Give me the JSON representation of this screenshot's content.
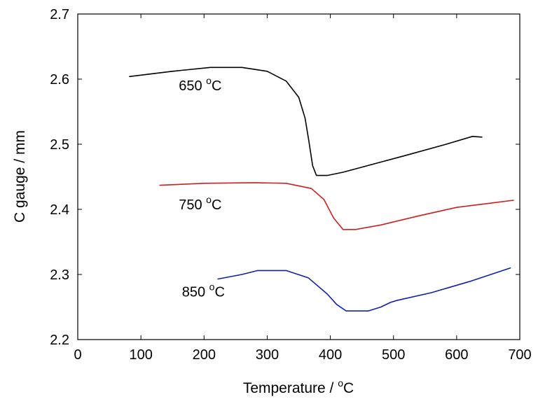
{
  "chart_data": {
    "type": "line",
    "title": "",
    "xlabel": "Temperature / ",
    "xlabel_unit": "C",
    "xlabel_sup": "o",
    "ylabel": "C gauge / mm",
    "xlim": [
      0,
      700
    ],
    "ylim": [
      2.2,
      2.7
    ],
    "xticks": [
      0,
      100,
      200,
      300,
      400,
      500,
      600,
      700
    ],
    "yticks": [
      2.2,
      2.3,
      2.4,
      2.5,
      2.6,
      2.7
    ],
    "xtick_labels": [
      "0",
      "100",
      "200",
      "300",
      "400",
      "500",
      "600",
      "700"
    ],
    "ytick_labels": [
      "2.2",
      "2.3",
      "2.4",
      "2.5",
      "2.6",
      "2.7"
    ],
    "grid": false,
    "legend": "none",
    "series": [
      {
        "name": "650",
        "label_text": "650 ",
        "label_sup": "o",
        "label_unit": "C",
        "label_at": [
          160,
          2.583
        ],
        "color": "#000000",
        "points": [
          [
            82,
            2.604
          ],
          [
            150,
            2.612
          ],
          [
            210,
            2.618
          ],
          [
            260,
            2.618
          ],
          [
            300,
            2.612
          ],
          [
            330,
            2.597
          ],
          [
            350,
            2.572
          ],
          [
            360,
            2.54
          ],
          [
            366,
            2.505
          ],
          [
            372,
            2.467
          ],
          [
            378,
            2.452
          ],
          [
            395,
            2.452
          ],
          [
            420,
            2.457
          ],
          [
            470,
            2.47
          ],
          [
            520,
            2.483
          ],
          [
            580,
            2.499
          ],
          [
            625,
            2.512
          ],
          [
            640,
            2.511
          ]
        ]
      },
      {
        "name": "750",
        "label_text": "750 ",
        "label_sup": "o",
        "label_unit": "C",
        "label_at": [
          160,
          2.4
        ],
        "color": "#cc2020",
        "points": [
          [
            130,
            2.437
          ],
          [
            200,
            2.44
          ],
          [
            280,
            2.441
          ],
          [
            330,
            2.44
          ],
          [
            370,
            2.432
          ],
          [
            390,
            2.415
          ],
          [
            405,
            2.387
          ],
          [
            420,
            2.369
          ],
          [
            440,
            2.369
          ],
          [
            480,
            2.376
          ],
          [
            540,
            2.39
          ],
          [
            600,
            2.403
          ],
          [
            650,
            2.409
          ],
          [
            690,
            2.414
          ]
        ]
      },
      {
        "name": "850",
        "label_text": "850 ",
        "label_sup": "o",
        "label_unit": "C",
        "label_at": [
          165,
          2.266
        ],
        "color": "#1020aa",
        "points": [
          [
            222,
            2.293
          ],
          [
            260,
            2.3
          ],
          [
            285,
            2.306
          ],
          [
            330,
            2.306
          ],
          [
            365,
            2.295
          ],
          [
            395,
            2.27
          ],
          [
            410,
            2.254
          ],
          [
            425,
            2.244
          ],
          [
            460,
            2.244
          ],
          [
            480,
            2.25
          ],
          [
            495,
            2.257
          ],
          [
            505,
            2.26
          ],
          [
            560,
            2.272
          ],
          [
            620,
            2.289
          ],
          [
            685,
            2.31
          ]
        ]
      }
    ]
  },
  "colors": {
    "axis": "#000000",
    "background": "#ffffff"
  }
}
